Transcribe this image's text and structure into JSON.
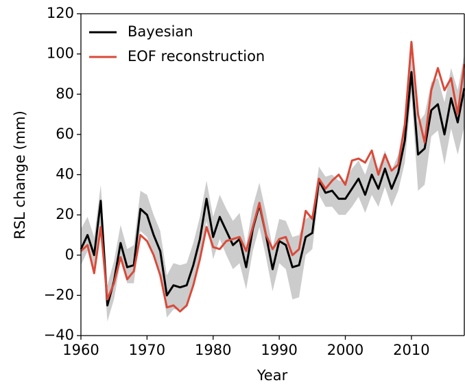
{
  "chart_data": {
    "type": "line",
    "x_label": "Year",
    "y_label": "RSL change (mm)",
    "x": [
      1960,
      1961,
      1962,
      1963,
      1964,
      1965,
      1966,
      1967,
      1968,
      1969,
      1970,
      1971,
      1972,
      1973,
      1974,
      1975,
      1976,
      1977,
      1978,
      1979,
      1980,
      1981,
      1982,
      1983,
      1984,
      1985,
      1986,
      1987,
      1988,
      1989,
      1990,
      1991,
      1992,
      1993,
      1994,
      1995,
      1996,
      1997,
      1998,
      1999,
      2000,
      2001,
      2002,
      2003,
      2004,
      2005,
      2006,
      2007,
      2008,
      2009,
      2010,
      2011,
      2012,
      2013,
      2014,
      2015,
      2016,
      2017,
      2018
    ],
    "band": {
      "color": "#cccccc",
      "lower": [
        -5,
        2,
        -8,
        15,
        -33,
        -22,
        -3,
        -14,
        -14,
        12,
        9,
        0,
        -8,
        -31,
        -27,
        -27,
        -26,
        -16,
        -3,
        17,
        -2,
        8,
        0,
        -7,
        -4,
        -17,
        2,
        14,
        -1,
        -18,
        -4,
        -7,
        -22,
        -21,
        0,
        3,
        30,
        24,
        24,
        20,
        20,
        24,
        29,
        21,
        30,
        24,
        34,
        24,
        32,
        46,
        80,
        32,
        35,
        59,
        62,
        45,
        63,
        50,
        64
      ],
      "upper": [
        13,
        19,
        9,
        35,
        -15,
        -3,
        15,
        3,
        5,
        32,
        30,
        20,
        12,
        -10,
        -4,
        -5,
        -4,
        6,
        19,
        37,
        19,
        30,
        23,
        17,
        21,
        5,
        24,
        36,
        21,
        4,
        18,
        17,
        9,
        10,
        18,
        20,
        44,
        39,
        40,
        37,
        37,
        43,
        47,
        40,
        50,
        43,
        52,
        42,
        50,
        67,
        100,
        66,
        70,
        86,
        88,
        76,
        93,
        82,
        100
      ]
    },
    "series": [
      {
        "name": "Bayesian",
        "color": "#000000",
        "values": [
          3,
          10,
          0,
          27,
          -25,
          -13,
          6,
          -6,
          -5,
          23,
          20,
          10,
          2,
          -20,
          -15,
          -16,
          -15,
          -5,
          8,
          28,
          9,
          19,
          12,
          5,
          8,
          -6,
          13,
          25,
          10,
          -7,
          7,
          5,
          -6,
          -5,
          9,
          11,
          37,
          31,
          32,
          28,
          28,
          33,
          38,
          30,
          40,
          33,
          43,
          33,
          41,
          57,
          91,
          50,
          53,
          72,
          75,
          60,
          78,
          66,
          83
        ]
      },
      {
        "name": "EOF reconstruction",
        "color": "#d94a3a",
        "values": [
          2,
          5,
          -9,
          14,
          -22,
          -14,
          -1,
          -12,
          -8,
          10,
          7,
          0,
          -10,
          -26,
          -25,
          -28,
          -25,
          -15,
          -2,
          14,
          4,
          3,
          7,
          8,
          9,
          2,
          14,
          26,
          10,
          3,
          8,
          9,
          0,
          3,
          22,
          18,
          38,
          33,
          37,
          40,
          35,
          47,
          48,
          46,
          52,
          40,
          50,
          42,
          45,
          65,
          106,
          70,
          56,
          82,
          93,
          82,
          88,
          70,
          95
        ]
      }
    ],
    "xlim": [
      1960,
      2018
    ],
    "ylim": [
      -40,
      120
    ],
    "xticks": [
      1960,
      1970,
      1980,
      1990,
      2000,
      2010
    ],
    "yticks": [
      {
        "value": -40,
        "label": "−40"
      },
      {
        "value": -20,
        "label": "−20"
      },
      0,
      20,
      40,
      60,
      80,
      100,
      120
    ],
    "legend": "upper left"
  }
}
